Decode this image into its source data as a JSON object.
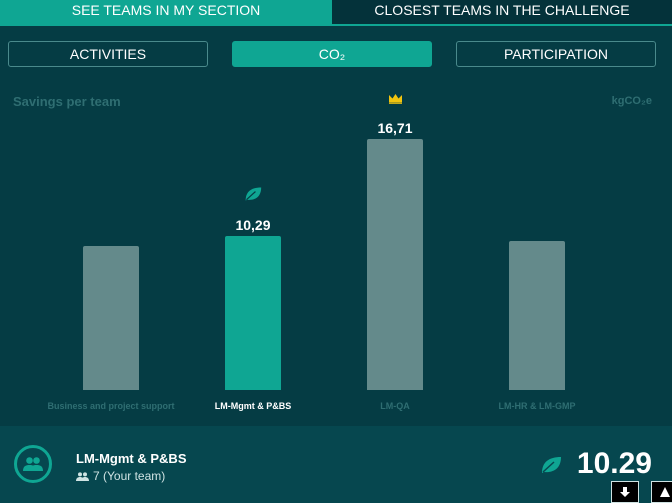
{
  "tabs": {
    "section": "SEE TEAMS IN MY SECTION",
    "challenge": "CLOSEST TEAMS IN THE CHALLENGE"
  },
  "segments": {
    "activities": "ACTIVITIES",
    "co2": "CO₂",
    "participation": "PARTICIPATION"
  },
  "panel": {
    "title": "Savings per team",
    "unit": "kgCO₂e"
  },
  "chart_data": {
    "type": "bar",
    "categories": [
      "Business and project support",
      "LM-Mgmt & P&BS",
      "LM-QA",
      "LM-HR & LM-GMP"
    ],
    "values": [
      9.6,
      10.29,
      16.71,
      9.95
    ],
    "value_labels": [
      "",
      "10,29",
      "16,71",
      ""
    ],
    "highlighted": "LM-Mgmt & P&BS",
    "leader": "LM-QA",
    "ylim": [
      0,
      18
    ],
    "colors": {
      "bar": "#648a8b",
      "highlight": "#0fa693"
    }
  },
  "footer": {
    "team_name": "LM-Mgmt & P&BS",
    "members": "7 (Your team)",
    "score": "10.29"
  },
  "icons": {
    "avatar": "team-icon",
    "members": "people-icon",
    "highlight": "leaf-icon",
    "leader": "crown-icon",
    "download": "arrow-down-icon",
    "next": "caret-up-icon"
  },
  "colors": {
    "accent": "#0fa693",
    "background": "#053c44",
    "crown": "#f1c40f"
  }
}
